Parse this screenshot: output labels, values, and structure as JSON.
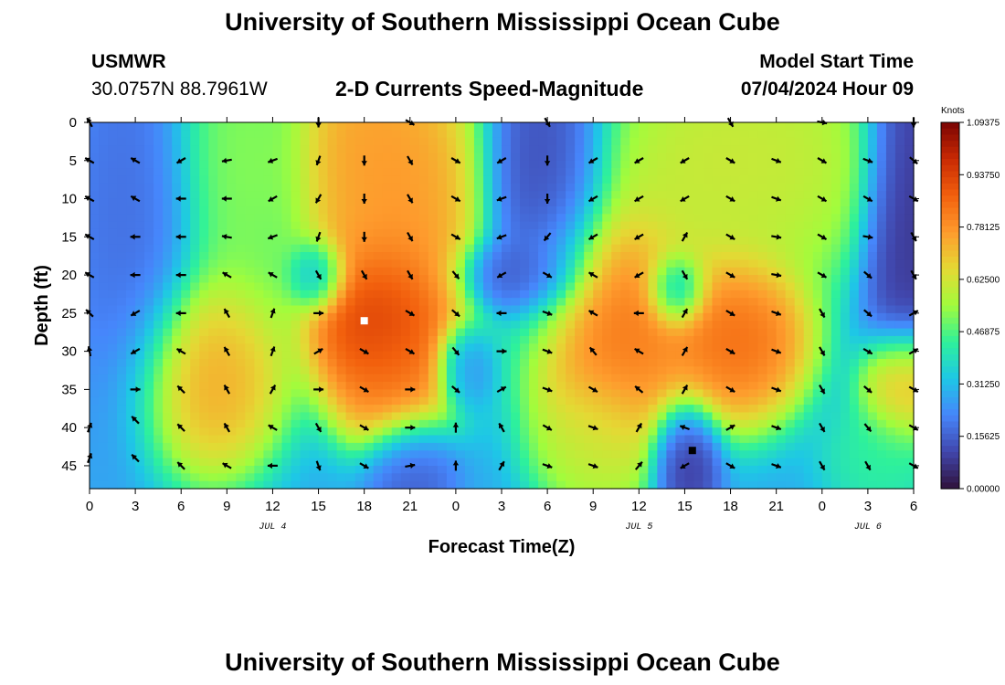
{
  "page": {
    "title_top": "University of Southern Mississippi Ocean Cube",
    "title_bottom": "University of Southern Mississippi Ocean Cube",
    "station": "USMWR",
    "coords": "30.0757N  88.7961W",
    "subtitle": "2-D Currents Speed-Magnitude",
    "model_start_label": "Model Start Time",
    "model_start_value": "07/04/2024 Hour 09"
  },
  "chart_data": {
    "type": "heatmap",
    "title": "2-D Currents Speed-Magnitude",
    "xlabel": "Forecast Time(Z)",
    "ylabel": "Depth (ft)",
    "x_ticks": [
      "0",
      "3",
      "6",
      "9",
      "12",
      "15",
      "18",
      "21",
      "0",
      "3",
      "6",
      "9",
      "12",
      "15",
      "18",
      "21",
      "0",
      "3",
      "6"
    ],
    "x_range_hours": [
      0,
      54
    ],
    "date_labels": [
      {
        "text": "JUL 4",
        "hour": 12
      },
      {
        "text": "JUL 5",
        "hour": 36
      },
      {
        "text": "JUL 6",
        "hour": 51
      }
    ],
    "y_ticks": [
      "0",
      "5",
      "10",
      "15",
      "20",
      "25",
      "30",
      "35",
      "40",
      "45"
    ],
    "y_range_ft": [
      0,
      48
    ],
    "colorbar": {
      "units": "Knots",
      "labels": [
        "1.09375",
        "0.93750",
        "0.78125",
        "0.62500",
        "0.46875",
        "0.31250",
        "0.15625",
        "0.00000"
      ],
      "range": [
        0,
        1.09375
      ],
      "colors": [
        "#30123b",
        "#4146ac",
        "#4686fb",
        "#1ec7e6",
        "#2ef19b",
        "#a2fc3c",
        "#e4d934",
        "#fe9b2d",
        "#f2600d",
        "#c92903",
        "#7a0403"
      ]
    },
    "field_centers": [
      {
        "hour": 3,
        "depth": 12,
        "value": 0.17,
        "sx": 2.2,
        "sy": 14
      },
      {
        "hour": 8,
        "depth": 33,
        "value": 0.8,
        "sx": 2.5,
        "sy": 7
      },
      {
        "hour": 10,
        "depth": 5,
        "value": 0.55,
        "sx": 2.5,
        "sy": 12
      },
      {
        "hour": 17.5,
        "depth": 4,
        "value": 0.8,
        "sx": 2.2,
        "sy": 10
      },
      {
        "hour": 21,
        "depth": 10,
        "value": 0.82,
        "sx": 2.5,
        "sy": 11
      },
      {
        "hour": 19,
        "depth": 26,
        "value": 1.05,
        "sx": 2.5,
        "sy": 6
      },
      {
        "hour": 20,
        "depth": 34,
        "value": 0.85,
        "sx": 2.0,
        "sy": 5
      },
      {
        "hour": 21,
        "depth": 45,
        "value": 0.13,
        "sx": 1.5,
        "sy": 4
      },
      {
        "hour": 15,
        "depth": 20,
        "value": 0.22,
        "sx": 1.0,
        "sy": 2.5
      },
      {
        "hour": 30,
        "depth": 8,
        "value": 0.1,
        "sx": 2.0,
        "sy": 10
      },
      {
        "hour": 28,
        "depth": 20,
        "value": 0.12,
        "sx": 2.0,
        "sy": 2.5
      },
      {
        "hour": 24.5,
        "depth": 32,
        "value": 0.2,
        "sx": 1.0,
        "sy": 3
      },
      {
        "hour": 34.5,
        "depth": 28,
        "value": 0.9,
        "sx": 3.0,
        "sy": 9
      },
      {
        "hour": 33,
        "depth": 42,
        "value": 0.6,
        "sx": 2.0,
        "sy": 5
      },
      {
        "hour": 41,
        "depth": 5,
        "value": 0.65,
        "sx": 4.0,
        "sy": 8
      },
      {
        "hour": 46,
        "depth": 5,
        "value": 0.62,
        "sx": 3.0,
        "sy": 8
      },
      {
        "hour": 42.5,
        "depth": 28,
        "value": 0.92,
        "sx": 2.5,
        "sy": 6
      },
      {
        "hour": 38.5,
        "depth": 22,
        "value": 0.2,
        "sx": 1.0,
        "sy": 2.5
      },
      {
        "hour": 39,
        "depth": 44,
        "value": 0.04,
        "sx": 1.2,
        "sy": 4
      },
      {
        "hour": 53.5,
        "depth": 35,
        "value": 0.8,
        "sx": 1.5,
        "sy": 4
      },
      {
        "hour": 52,
        "depth": 44,
        "value": 0.45,
        "sx": 2.0,
        "sy": 4
      },
      {
        "hour": 53.5,
        "depth": 10,
        "value": 0.05,
        "sx": 1.5,
        "sy": 12
      }
    ],
    "field_baseline": 0.28,
    "vectors": [
      {
        "hour": 0,
        "depth": 0,
        "dir": 330
      },
      {
        "hour": 0,
        "depth": 5,
        "dir": 300
      },
      {
        "hour": 0,
        "depth": 10,
        "dir": 300
      },
      {
        "hour": 0,
        "depth": 15,
        "dir": 300
      },
      {
        "hour": 0,
        "depth": 20,
        "dir": 300
      },
      {
        "hour": 0,
        "depth": 25,
        "dir": 315
      },
      {
        "hour": 0,
        "depth": 30,
        "dir": 350
      },
      {
        "hour": 0,
        "depth": 40,
        "dir": 20
      },
      {
        "hour": 0,
        "depth": 44,
        "dir": 20
      },
      {
        "hour": 3,
        "depth": 5,
        "dir": 300
      },
      {
        "hour": 3,
        "depth": 10,
        "dir": 300
      },
      {
        "hour": 3,
        "depth": 15,
        "dir": 270
      },
      {
        "hour": 3,
        "depth": 20,
        "dir": 270
      },
      {
        "hour": 3,
        "depth": 25,
        "dir": 240
      },
      {
        "hour": 3,
        "depth": 30,
        "dir": 240
      },
      {
        "hour": 3,
        "depth": 35,
        "dir": 90
      },
      {
        "hour": 3,
        "depth": 39,
        "dir": 315
      },
      {
        "hour": 3,
        "depth": 44,
        "dir": 315
      },
      {
        "hour": 6,
        "depth": 5,
        "dir": 240
      },
      {
        "hour": 6,
        "depth": 10,
        "dir": 270
      },
      {
        "hour": 6,
        "depth": 15,
        "dir": 270
      },
      {
        "hour": 6,
        "depth": 20,
        "dir": 270
      },
      {
        "hour": 6,
        "depth": 25,
        "dir": 270
      },
      {
        "hour": 6,
        "depth": 30,
        "dir": 300
      },
      {
        "hour": 6,
        "depth": 35,
        "dir": 315
      },
      {
        "hour": 6,
        "depth": 40,
        "dir": 315
      },
      {
        "hour": 6,
        "depth": 45,
        "dir": 315
      },
      {
        "hour": 9,
        "depth": 5,
        "dir": 260
      },
      {
        "hour": 9,
        "depth": 10,
        "dir": 270
      },
      {
        "hour": 9,
        "depth": 15,
        "dir": 280
      },
      {
        "hour": 9,
        "depth": 20,
        "dir": 300
      },
      {
        "hour": 9,
        "depth": 25,
        "dir": 330
      },
      {
        "hour": 9,
        "depth": 30,
        "dir": 330
      },
      {
        "hour": 9,
        "depth": 35,
        "dir": 330
      },
      {
        "hour": 9,
        "depth": 40,
        "dir": 330
      },
      {
        "hour": 9,
        "depth": 45,
        "dir": 300
      },
      {
        "hour": 12,
        "depth": 5,
        "dir": 250
      },
      {
        "hour": 12,
        "depth": 10,
        "dir": 240
      },
      {
        "hour": 12,
        "depth": 15,
        "dir": 250
      },
      {
        "hour": 12,
        "depth": 20,
        "dir": 300
      },
      {
        "hour": 12,
        "depth": 25,
        "dir": 20
      },
      {
        "hour": 12,
        "depth": 30,
        "dir": 20
      },
      {
        "hour": 12,
        "depth": 35,
        "dir": 30
      },
      {
        "hour": 12,
        "depth": 40,
        "dir": 300
      },
      {
        "hour": 12,
        "depth": 45,
        "dir": 270
      },
      {
        "hour": 15,
        "depth": 0,
        "dir": 180
      },
      {
        "hour": 15,
        "depth": 5,
        "dir": 200
      },
      {
        "hour": 15,
        "depth": 10,
        "dir": 210
      },
      {
        "hour": 15,
        "depth": 15,
        "dir": 200
      },
      {
        "hour": 15,
        "depth": 20,
        "dir": 150
      },
      {
        "hour": 15,
        "depth": 25,
        "dir": 90
      },
      {
        "hour": 15,
        "depth": 30,
        "dir": 60
      },
      {
        "hour": 15,
        "depth": 35,
        "dir": 90
      },
      {
        "hour": 15,
        "depth": 40,
        "dir": 150
      },
      {
        "hour": 15,
        "depth": 45,
        "dir": 160
      },
      {
        "hour": 18,
        "depth": 5,
        "dir": 180
      },
      {
        "hour": 18,
        "depth": 10,
        "dir": 180
      },
      {
        "hour": 18,
        "depth": 15,
        "dir": 180
      },
      {
        "hour": 18,
        "depth": 20,
        "dir": 150
      },
      {
        "hour": 18,
        "depth": 30,
        "dir": 120
      },
      {
        "hour": 18,
        "depth": 35,
        "dir": 120
      },
      {
        "hour": 18,
        "depth": 40,
        "dir": 120
      },
      {
        "hour": 18,
        "depth": 45,
        "dir": 120
      },
      {
        "hour": 21,
        "depth": 0,
        "dir": 120
      },
      {
        "hour": 21,
        "depth": 5,
        "dir": 150
      },
      {
        "hour": 21,
        "depth": 10,
        "dir": 150
      },
      {
        "hour": 21,
        "depth": 15,
        "dir": 150
      },
      {
        "hour": 21,
        "depth": 20,
        "dir": 150
      },
      {
        "hour": 21,
        "depth": 25,
        "dir": 120
      },
      {
        "hour": 21,
        "depth": 30,
        "dir": 120
      },
      {
        "hour": 21,
        "depth": 35,
        "dir": 90
      },
      {
        "hour": 21,
        "depth": 40,
        "dir": 90
      },
      {
        "hour": 21,
        "depth": 45,
        "dir": 80
      },
      {
        "hour": 24,
        "depth": 5,
        "dir": 120
      },
      {
        "hour": 24,
        "depth": 10,
        "dir": 120
      },
      {
        "hour": 24,
        "depth": 15,
        "dir": 120
      },
      {
        "hour": 24,
        "depth": 20,
        "dir": 140
      },
      {
        "hour": 24,
        "depth": 25,
        "dir": 130
      },
      {
        "hour": 24,
        "depth": 30,
        "dir": 140
      },
      {
        "hour": 24,
        "depth": 35,
        "dir": 130
      },
      {
        "hour": 24,
        "depth": 40,
        "dir": 0
      },
      {
        "hour": 24,
        "depth": 45,
        "dir": 0
      },
      {
        "hour": 27,
        "depth": 5,
        "dir": 240
      },
      {
        "hour": 27,
        "depth": 10,
        "dir": 250
      },
      {
        "hour": 27,
        "depth": 15,
        "dir": 250
      },
      {
        "hour": 27,
        "depth": 20,
        "dir": 240
      },
      {
        "hour": 27,
        "depth": 25,
        "dir": 270
      },
      {
        "hour": 27,
        "depth": 30,
        "dir": 90
      },
      {
        "hour": 27,
        "depth": 35,
        "dir": 60
      },
      {
        "hour": 27,
        "depth": 40,
        "dir": 330
      },
      {
        "hour": 27,
        "depth": 45,
        "dir": 30
      },
      {
        "hour": 30,
        "depth": 0,
        "dir": 150
      },
      {
        "hour": 30,
        "depth": 5,
        "dir": 180
      },
      {
        "hour": 30,
        "depth": 10,
        "dir": 180
      },
      {
        "hour": 30,
        "depth": 15,
        "dir": 220
      },
      {
        "hour": 30,
        "depth": 20,
        "dir": 120
      },
      {
        "hour": 30,
        "depth": 25,
        "dir": 110
      },
      {
        "hour": 30,
        "depth": 30,
        "dir": 110
      },
      {
        "hour": 30,
        "depth": 35,
        "dir": 110
      },
      {
        "hour": 30,
        "depth": 40,
        "dir": 120
      },
      {
        "hour": 30,
        "depth": 45,
        "dir": 110
      },
      {
        "hour": 33,
        "depth": 5,
        "dir": 240
      },
      {
        "hour": 33,
        "depth": 10,
        "dir": 240
      },
      {
        "hour": 33,
        "depth": 15,
        "dir": 240
      },
      {
        "hour": 33,
        "depth": 20,
        "dir": 300
      },
      {
        "hour": 33,
        "depth": 25,
        "dir": 300
      },
      {
        "hour": 33,
        "depth": 30,
        "dir": 320
      },
      {
        "hour": 33,
        "depth": 35,
        "dir": 120
      },
      {
        "hour": 33,
        "depth": 40,
        "dir": 110
      },
      {
        "hour": 33,
        "depth": 45,
        "dir": 110
      },
      {
        "hour": 36,
        "depth": 5,
        "dir": 240
      },
      {
        "hour": 36,
        "depth": 10,
        "dir": 240
      },
      {
        "hour": 36,
        "depth": 15,
        "dir": 240
      },
      {
        "hour": 36,
        "depth": 20,
        "dir": 240
      },
      {
        "hour": 36,
        "depth": 25,
        "dir": 270
      },
      {
        "hour": 36,
        "depth": 30,
        "dir": 300
      },
      {
        "hour": 36,
        "depth": 35,
        "dir": 310
      },
      {
        "hour": 36,
        "depth": 40,
        "dir": 30
      },
      {
        "hour": 36,
        "depth": 45,
        "dir": 40
      },
      {
        "hour": 39,
        "depth": 5,
        "dir": 240
      },
      {
        "hour": 39,
        "depth": 10,
        "dir": 240
      },
      {
        "hour": 39,
        "depth": 15,
        "dir": 30
      },
      {
        "hour": 39,
        "depth": 20,
        "dir": 150
      },
      {
        "hour": 39,
        "depth": 25,
        "dir": 30
      },
      {
        "hour": 39,
        "depth": 30,
        "dir": 30
      },
      {
        "hour": 39,
        "depth": 35,
        "dir": 30
      },
      {
        "hour": 39,
        "depth": 40,
        "dir": 290
      },
      {
        "hour": 39,
        "depth": 45,
        "dir": 240
      },
      {
        "hour": 42,
        "depth": 0,
        "dir": 150
      },
      {
        "hour": 42,
        "depth": 5,
        "dir": 120
      },
      {
        "hour": 42,
        "depth": 10,
        "dir": 120
      },
      {
        "hour": 42,
        "depth": 15,
        "dir": 120
      },
      {
        "hour": 42,
        "depth": 20,
        "dir": 120
      },
      {
        "hour": 42,
        "depth": 25,
        "dir": 120
      },
      {
        "hour": 42,
        "depth": 30,
        "dir": 120
      },
      {
        "hour": 42,
        "depth": 35,
        "dir": 120
      },
      {
        "hour": 42,
        "depth": 40,
        "dir": 60
      },
      {
        "hour": 42,
        "depth": 45,
        "dir": 120
      },
      {
        "hour": 45,
        "depth": 5,
        "dir": 110
      },
      {
        "hour": 45,
        "depth": 10,
        "dir": 110
      },
      {
        "hour": 45,
        "depth": 15,
        "dir": 100
      },
      {
        "hour": 45,
        "depth": 20,
        "dir": 100
      },
      {
        "hour": 45,
        "depth": 25,
        "dir": 110
      },
      {
        "hour": 45,
        "depth": 30,
        "dir": 110
      },
      {
        "hour": 45,
        "depth": 35,
        "dir": 110
      },
      {
        "hour": 45,
        "depth": 40,
        "dir": 110
      },
      {
        "hour": 45,
        "depth": 45,
        "dir": 110
      },
      {
        "hour": 48,
        "depth": 0,
        "dir": 100
      },
      {
        "hour": 48,
        "depth": 5,
        "dir": 120
      },
      {
        "hour": 48,
        "depth": 10,
        "dir": 120
      },
      {
        "hour": 48,
        "depth": 15,
        "dir": 120
      },
      {
        "hour": 48,
        "depth": 20,
        "dir": 120
      },
      {
        "hour": 48,
        "depth": 25,
        "dir": 150
      },
      {
        "hour": 48,
        "depth": 30,
        "dir": 150
      },
      {
        "hour": 48,
        "depth": 35,
        "dir": 150
      },
      {
        "hour": 48,
        "depth": 40,
        "dir": 150
      },
      {
        "hour": 48,
        "depth": 45,
        "dir": 150
      },
      {
        "hour": 51,
        "depth": 5,
        "dir": 110
      },
      {
        "hour": 51,
        "depth": 10,
        "dir": 120
      },
      {
        "hour": 51,
        "depth": 15,
        "dir": 100
      },
      {
        "hour": 51,
        "depth": 20,
        "dir": 130
      },
      {
        "hour": 51,
        "depth": 25,
        "dir": 130
      },
      {
        "hour": 51,
        "depth": 30,
        "dir": 120
      },
      {
        "hour": 51,
        "depth": 35,
        "dir": 130
      },
      {
        "hour": 51,
        "depth": 40,
        "dir": 140
      },
      {
        "hour": 51,
        "depth": 45,
        "dir": 150
      },
      {
        "hour": 54,
        "depth": 0,
        "dir": 180
      },
      {
        "hour": 54,
        "depth": 5,
        "dir": 130
      },
      {
        "hour": 54,
        "depth": 10,
        "dir": 120
      },
      {
        "hour": 54,
        "depth": 15,
        "dir": 150
      },
      {
        "hour": 54,
        "depth": 20,
        "dir": 150
      },
      {
        "hour": 54,
        "depth": 25,
        "dir": 60
      },
      {
        "hour": 54,
        "depth": 30,
        "dir": 60
      },
      {
        "hour": 54,
        "depth": 35,
        "dir": 120
      },
      {
        "hour": 54,
        "depth": 40,
        "dir": 120
      },
      {
        "hour": 54,
        "depth": 45,
        "dir": 120
      }
    ],
    "markers": [
      {
        "hour": 18,
        "depth": 26,
        "color": "#ffffff"
      },
      {
        "hour": 39.5,
        "depth": 43,
        "color": "#000000"
      }
    ]
  }
}
